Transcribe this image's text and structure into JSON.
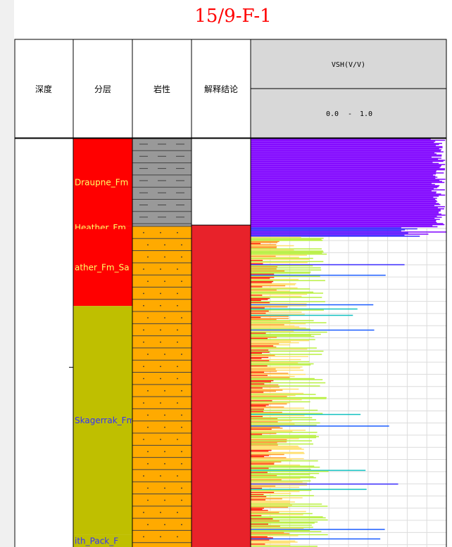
{
  "title": "15/9-F-1",
  "headers": {
    "depth": "深度",
    "zones": "分层",
    "lithology": "岩性",
    "interpretation": "解释结论",
    "curve_name": "VSH(V/V)",
    "curve_scale_min": "0.0",
    "curve_scale_sep": "-",
    "curve_scale_max": "1.0"
  },
  "colors": {
    "zone_red": "#ff0000",
    "zone_olive": "#bfbf00",
    "lith_shale": "#999999",
    "lith_sand": "#ffaa00",
    "interp_red": "#e8222a",
    "header_fill": "#d8d8d8",
    "title_red": "#ff0000"
  },
  "zones": [
    {
      "label": "Draupne_Fm",
      "color": "#ff0000",
      "text_color": "#ffff66",
      "top": 0.0,
      "base": 0.215
    },
    {
      "label": "Heather_Fm",
      "color": "#ff0000",
      "text_color": "#ffff66",
      "top": 0.215,
      "base": 0.222
    },
    {
      "label": "ather_Fm_Sa",
      "color": "#ff0000",
      "text_color": "#ffff66",
      "top": 0.222,
      "base": 0.41
    },
    {
      "label": "Skagerrak_Fm",
      "color": "#bfbf00",
      "text_color": "#3333ff",
      "top": 0.41,
      "base": 0.97
    },
    {
      "label": "ith_Pack_F",
      "color": "#bfbf00",
      "text_color": "#3333ff",
      "top": 0.97,
      "base": 1.0
    }
  ],
  "lithology": [
    {
      "type": "shale",
      "top": 0.0,
      "base": 0.215
    },
    {
      "type": "sandstone",
      "top": 0.215,
      "base": 1.0
    }
  ],
  "interpretation": [
    {
      "color": "#e8222a",
      "top": 0.212,
      "base": 1.0
    }
  ],
  "chart_data": {
    "type": "area",
    "curve": "VSH(V/V)",
    "xlim": [
      0.0,
      1.0
    ],
    "grid": true,
    "depth_range_relative": [
      0.0,
      1.0
    ],
    "description_of_colour_map": "purple high VSH to yellow/red low VSH",
    "segments": [
      {
        "top": 0.0,
        "base": 0.215,
        "vsh_mean": 0.98,
        "color": "#7f00ff"
      },
      {
        "top": 0.215,
        "base": 0.24,
        "vsh_mean": 0.85,
        "color": "#4a00ff"
      },
      {
        "top": 0.24,
        "base": 1.0,
        "vsh_mean": 0.25,
        "color": "#ffd24a"
      }
    ]
  }
}
